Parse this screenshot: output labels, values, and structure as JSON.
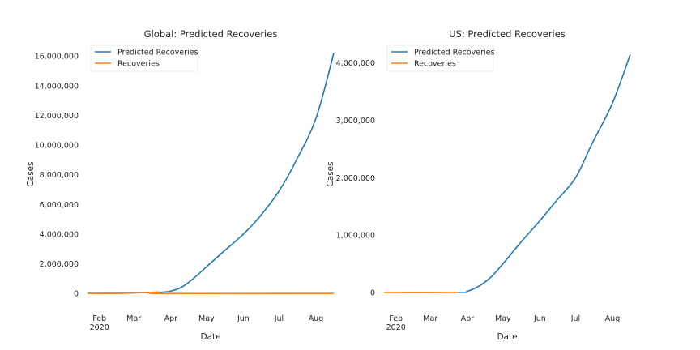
{
  "colors": {
    "predicted": "#1f77b4",
    "actual": "#ff7f0e"
  },
  "chart_data": [
    {
      "type": "line",
      "title": "Global: Predicted Recoveries",
      "xlabel": "Date",
      "ylabel": "Cases",
      "x_ticks": [
        "Feb",
        "Mar",
        "Apr",
        "May",
        "Jun",
        "Jul",
        "Aug"
      ],
      "x_tick_year": "2020",
      "x_tick_dates": [
        "2020-02-01",
        "2020-03-01",
        "2020-04-01",
        "2020-05-01",
        "2020-06-01",
        "2020-07-01",
        "2020-08-01"
      ],
      "xlim": [
        "2020-01-22",
        "2020-08-16"
      ],
      "y_ticks": [
        0,
        2000000,
        4000000,
        6000000,
        8000000,
        10000000,
        12000000,
        14000000,
        16000000
      ],
      "y_tick_labels": [
        "0",
        "2,000,000",
        "4,000,000",
        "6,000,000",
        "8,000,000",
        "10,000,000",
        "12,000,000",
        "14,000,000",
        "16,000,000"
      ],
      "ylim": [
        -700000,
        16500000
      ],
      "grid": false,
      "legend_position": "top-left",
      "series": [
        {
          "name": "Predicted Recoveries",
          "color_key": "predicted",
          "points": [
            [
              "2020-01-22",
              0
            ],
            [
              "2020-02-15",
              10000
            ],
            [
              "2020-03-01",
              40000
            ],
            [
              "2020-03-15",
              70000
            ],
            [
              "2020-03-25",
              90000
            ],
            [
              "2020-04-01",
              160000
            ],
            [
              "2020-04-10",
              420000
            ],
            [
              "2020-04-20",
              1000000
            ],
            [
              "2020-05-01",
              1800000
            ],
            [
              "2020-05-15",
              2800000
            ],
            [
              "2020-06-01",
              4000000
            ],
            [
              "2020-06-15",
              5200000
            ],
            [
              "2020-07-01",
              6900000
            ],
            [
              "2020-07-15",
              8900000
            ],
            [
              "2020-08-01",
              11800000
            ],
            [
              "2020-08-16",
              16200000
            ]
          ]
        },
        {
          "name": "Recoveries",
          "color_key": "actual",
          "points": [
            [
              "2020-01-22",
              0
            ],
            [
              "2020-02-15",
              10000
            ],
            [
              "2020-03-01",
              45000
            ],
            [
              "2020-03-15",
              75000
            ],
            [
              "2020-03-22",
              100000
            ],
            [
              "2020-03-24",
              0
            ],
            [
              "2020-08-16",
              0
            ]
          ]
        }
      ]
    },
    {
      "type": "line",
      "title": "US: Predicted Recoveries",
      "xlabel": "Date",
      "ylabel": "Cases",
      "x_ticks": [
        "Feb",
        "Mar",
        "Apr",
        "May",
        "Jun",
        "Jul",
        "Aug"
      ],
      "x_tick_year": "2020",
      "x_tick_dates": [
        "2020-02-01",
        "2020-03-01",
        "2020-04-01",
        "2020-05-01",
        "2020-06-01",
        "2020-07-01",
        "2020-08-01"
      ],
      "xlim": [
        "2020-01-22",
        "2020-08-16"
      ],
      "y_ticks": [
        0,
        1000000,
        2000000,
        3000000,
        4000000
      ],
      "y_tick_labels": [
        "0",
        "1,000,000",
        "2,000,000",
        "3,000,000",
        "4,000,000"
      ],
      "ylim": [
        -200000,
        4250000
      ],
      "grid": false,
      "legend_position": "top-left",
      "series": [
        {
          "name": "Predicted Recoveries",
          "color_key": "predicted",
          "points": [
            [
              "2020-01-22",
              0
            ],
            [
              "2020-03-25",
              0
            ],
            [
              "2020-04-01",
              20000
            ],
            [
              "2020-04-10",
              100000
            ],
            [
              "2020-04-20",
              250000
            ],
            [
              "2020-05-01",
              500000
            ],
            [
              "2020-05-15",
              850000
            ],
            [
              "2020-06-01",
              1250000
            ],
            [
              "2020-06-15",
              1600000
            ],
            [
              "2020-07-01",
              2000000
            ],
            [
              "2020-07-15",
              2600000
            ],
            [
              "2020-08-01",
              3300000
            ],
            [
              "2020-08-16",
              4150000
            ]
          ]
        },
        {
          "name": "Recoveries",
          "color_key": "actual",
          "points": [
            [
              "2020-01-22",
              0
            ],
            [
              "2020-03-24",
              0
            ]
          ]
        }
      ]
    }
  ]
}
